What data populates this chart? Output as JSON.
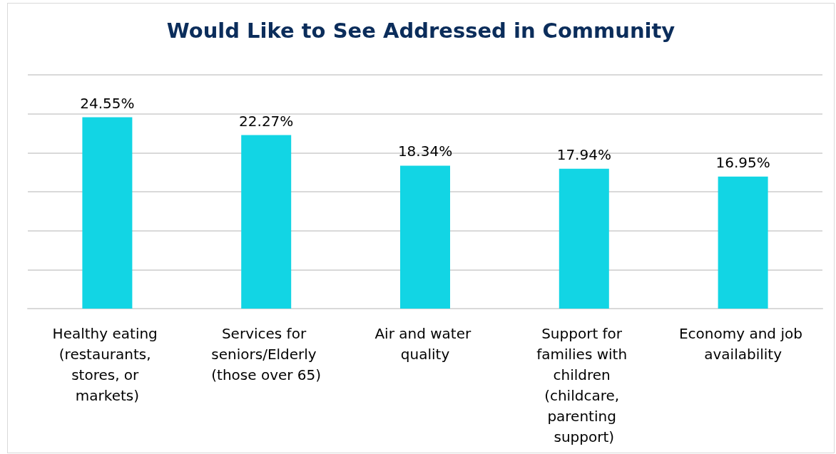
{
  "chart_data": {
    "type": "bar",
    "title": "Would Like to See Addressed in Community",
    "categories": [
      "Healthy eating (restaurants, stores, or markets)",
      "Services for seniors/Elderly (those over 65)",
      "Air and water quality",
      "Support for families with children (childcare, parenting support)",
      "Economy and job availability"
    ],
    "values": [
      24.55,
      22.27,
      18.34,
      17.94,
      16.95
    ],
    "value_labels": [
      "24.55%",
      "22.27%",
      "18.34%",
      "17.94%",
      "16.95%"
    ],
    "color": "#12d5e4",
    "ylim": [
      0,
      30
    ],
    "yticks": [
      {
        "value": 0,
        "label": null
      },
      {
        "value": 5,
        "label": null
      },
      {
        "value": 10,
        "label": null
      },
      {
        "value": 15,
        "label": null
      },
      {
        "value": 20,
        "label": null
      },
      {
        "value": 25,
        "label": null
      },
      {
        "value": 30,
        "label": null
      }
    ],
    "grid": "y",
    "tick_labels": "x"
  }
}
